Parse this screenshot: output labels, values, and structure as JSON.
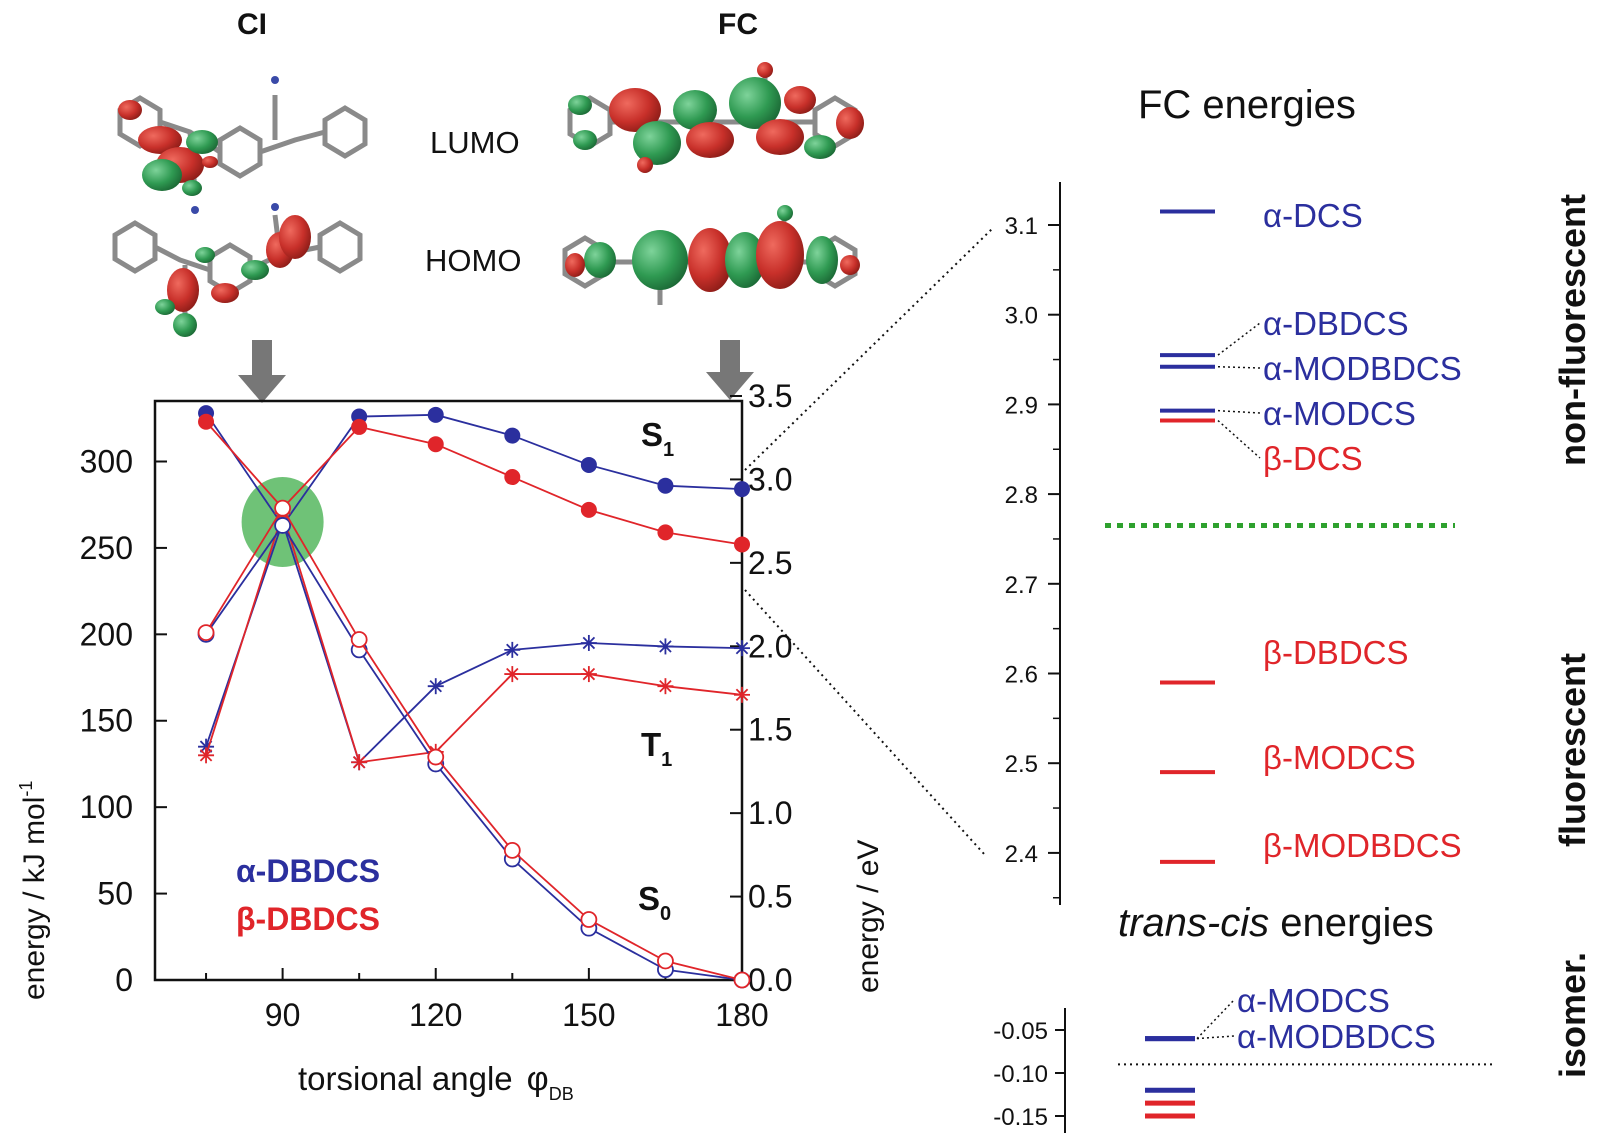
{
  "headers": {
    "ci": "CI",
    "fc": "FC"
  },
  "orbitals": {
    "lumo": "LUMO",
    "homo": "HOMO"
  },
  "colors": {
    "blue": "#2b2f9e",
    "red": "#e0252a",
    "green_ci": "#3fae49",
    "green_dotted": "#2ea12e",
    "arrow": "#777777",
    "lobe_red": "#c8302a",
    "lobe_green": "#2f9a52"
  },
  "main_chart": {
    "xlabel": "torsional angle",
    "xlabel_symbol": "φ",
    "xlabel_sub": "DB",
    "ylabel_left": "energy / kJ mol",
    "ylabel_left_sup": "-1",
    "ylabel_right": "energy / eV",
    "curve_labels": {
      "s1": "S",
      "s1_sub": "1",
      "t1": "T",
      "t1_sub": "1",
      "s0": "S",
      "s0_sub": "0"
    },
    "legend": {
      "alpha": "α-DBDCS",
      "beta": "β-DBDCS"
    }
  },
  "chart_data": [
    {
      "type": "line",
      "title": "",
      "xlabel": "torsional angle φDB",
      "ylabel": "energy / kJ mol-1",
      "y2label": "energy / eV",
      "xlim": [
        65,
        180
      ],
      "ylim": [
        0,
        335
      ],
      "y2lim": [
        0,
        3.47
      ],
      "x_ticks": [
        "90",
        "120",
        "150",
        "180"
      ],
      "y_ticks": [
        "0",
        "50",
        "100",
        "150",
        "200",
        "250",
        "300"
      ],
      "y2_ticks": [
        "0.0",
        "0.5",
        "1.0",
        "1.5",
        "2.0",
        "2.5",
        "3.0",
        "3.5"
      ],
      "highlight": {
        "label": "CI",
        "x": 90,
        "y": 265
      },
      "series": [
        {
          "name": "α-DBDCS S1",
          "color": "blue",
          "marker": "filled",
          "x": [
            75,
            90,
            105,
            120,
            135,
            150,
            165,
            180
          ],
          "values": [
            328,
            263,
            326,
            327,
            315,
            298,
            286,
            284
          ]
        },
        {
          "name": "β-DBDCS S1",
          "color": "red",
          "marker": "filled",
          "x": [
            75,
            90,
            105,
            120,
            135,
            150,
            165,
            180
          ],
          "values": [
            323,
            273,
            320,
            310,
            291,
            272,
            259,
            252
          ]
        },
        {
          "name": "α-DBDCS T1",
          "color": "blue",
          "marker": "star",
          "x": [
            75,
            90,
            105,
            120,
            135,
            150,
            165,
            180
          ],
          "values": [
            135,
            265,
            126,
            170,
            191,
            195,
            193,
            192
          ]
        },
        {
          "name": "β-DBDCS T1",
          "color": "red",
          "marker": "star",
          "x": [
            75,
            90,
            105,
            120,
            135,
            150,
            165,
            180
          ],
          "values": [
            130,
            270,
            126,
            132,
            177,
            177,
            170,
            165
          ]
        },
        {
          "name": "α-DBDCS S0",
          "color": "blue",
          "marker": "open",
          "x": [
            75,
            90,
            105,
            120,
            135,
            150,
            165,
            180
          ],
          "values": [
            200,
            263,
            191,
            125,
            70,
            30,
            6,
            0
          ]
        },
        {
          "name": "β-DBDCS S0",
          "color": "red",
          "marker": "open",
          "x": [
            75,
            90,
            105,
            120,
            135,
            150,
            165,
            180
          ],
          "values": [
            201,
            273,
            197,
            129,
            75,
            35,
            11,
            0
          ]
        }
      ]
    },
    {
      "type": "scatter",
      "title": "FC energies",
      "ylim": [
        2.355,
        3.18
      ],
      "y_ticks": [
        "3.1",
        "3.0",
        "2.9",
        "2.8",
        "2.7",
        "2.6",
        "2.5",
        "2.4"
      ],
      "threshold": 2.765,
      "region_labels": {
        "upper": "non-fluorescent",
        "lower": "fluorescent"
      },
      "levels": [
        {
          "name": "α-DCS",
          "value": 3.115,
          "color": "blue"
        },
        {
          "name": "α-DBDCS",
          "value": 2.955,
          "color": "blue"
        },
        {
          "name": "α-MODBDCS",
          "value": 2.942,
          "color": "blue"
        },
        {
          "name": "α-MODCS",
          "value": 2.893,
          "color": "blue"
        },
        {
          "name": "β-DCS",
          "value": 2.882,
          "color": "red"
        },
        {
          "name": "β-DBDCS",
          "value": 2.59,
          "color": "red"
        },
        {
          "name": "β-MODCS",
          "value": 2.49,
          "color": "red"
        },
        {
          "name": "β-MODBDCS",
          "value": 2.39,
          "color": "red"
        }
      ]
    },
    {
      "type": "scatter",
      "title_italic": "trans-cis",
      "title_rest": " energies",
      "ylim": [
        -0.17,
        -0.03
      ],
      "y_ticks": [
        "-0.05",
        "-0.10",
        "-0.15"
      ],
      "threshold": -0.09,
      "region_label": "isomer.",
      "levels": [
        {
          "name": "α-MODCS",
          "value": -0.06,
          "color": "blue"
        },
        {
          "name": "α-MODBDCS",
          "value": -0.06,
          "color": "blue"
        },
        {
          "name": "",
          "value": -0.12,
          "color": "blue"
        },
        {
          "name": "",
          "value": -0.135,
          "color": "red"
        },
        {
          "name": "",
          "value": -0.15,
          "color": "red"
        }
      ]
    }
  ]
}
